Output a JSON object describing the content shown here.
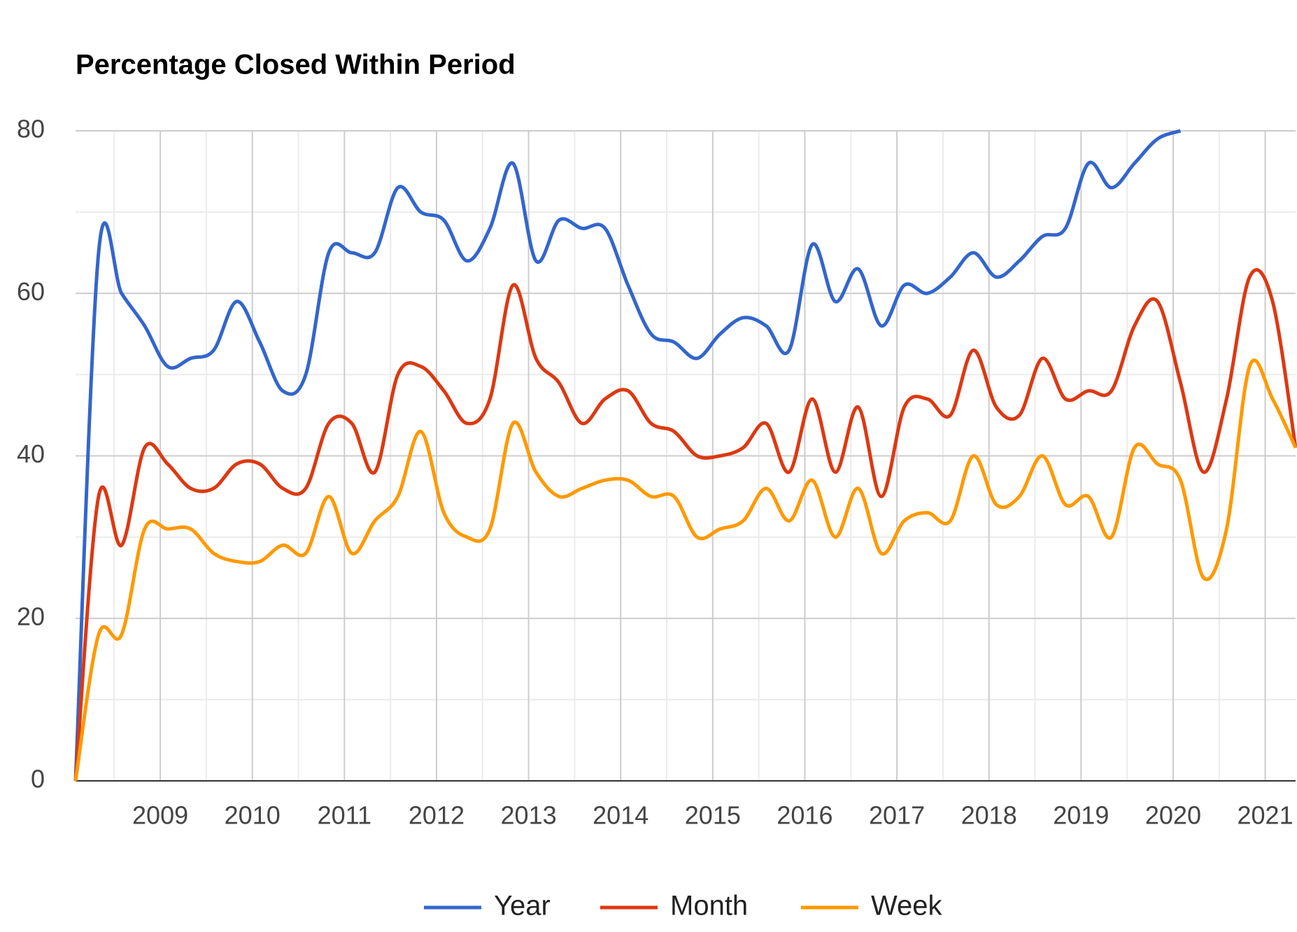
{
  "chart_data": {
    "type": "line",
    "title": "Percentage Closed Within Period",
    "x": [
      2008.08,
      2008.33,
      2008.58,
      2008.83,
      2009.08,
      2009.33,
      2009.58,
      2009.83,
      2010.08,
      2010.33,
      2010.58,
      2010.83,
      2011.08,
      2011.33,
      2011.58,
      2011.83,
      2012.08,
      2012.33,
      2012.58,
      2012.83,
      2013.08,
      2013.33,
      2013.58,
      2013.83,
      2014.08,
      2014.33,
      2014.58,
      2014.83,
      2015.08,
      2015.33,
      2015.58,
      2015.83,
      2016.08,
      2016.33,
      2016.58,
      2016.83,
      2017.08,
      2017.33,
      2017.58,
      2017.83,
      2018.08,
      2018.33,
      2018.58,
      2018.83,
      2019.08,
      2019.33,
      2019.58,
      2019.83,
      2020.08,
      2020.33,
      2020.58,
      2020.83,
      2021.08,
      2021.33
    ],
    "series": [
      {
        "name": "Year",
        "color": "#3366cc",
        "values": [
          0,
          65,
          60,
          56,
          51,
          52,
          53,
          59,
          54,
          48,
          50,
          65,
          65,
          65,
          73,
          70,
          69,
          64,
          68,
          76,
          64,
          69,
          68,
          68,
          61,
          55,
          54,
          52,
          55,
          57,
          56,
          53,
          66,
          59,
          63,
          56,
          61,
          60,
          62,
          65,
          62,
          64,
          67,
          68,
          76,
          73,
          76,
          79,
          80,
          null,
          null,
          null,
          null,
          null
        ]
      },
      {
        "name": "Month",
        "color": "#dc3912",
        "values": [
          0,
          35,
          29,
          41,
          39,
          36,
          36,
          39,
          39,
          36,
          36,
          44,
          44,
          38,
          50,
          51,
          48,
          44,
          47,
          61,
          52,
          49,
          44,
          47,
          48,
          44,
          43,
          40,
          40,
          41,
          44,
          38,
          47,
          38,
          46,
          35,
          46,
          47,
          45,
          53,
          46,
          45,
          52,
          47,
          48,
          48,
          56,
          59,
          49,
          38,
          47,
          62,
          59,
          41
        ]
      },
      {
        "name": "Week",
        "color": "#ff9900",
        "values": [
          0,
          18,
          18,
          31,
          31,
          31,
          28,
          27,
          27,
          29,
          28,
          35,
          28,
          32,
          35,
          43,
          33,
          30,
          31,
          44,
          38,
          35,
          36,
          37,
          37,
          35,
          35,
          30,
          31,
          32,
          36,
          32,
          37,
          30,
          36,
          28,
          32,
          33,
          32,
          40,
          34,
          35,
          40,
          34,
          35,
          30,
          41,
          39,
          37,
          25,
          31,
          51,
          47,
          41
        ]
      }
    ],
    "xlim": [
      2008.08,
      2021.33
    ],
    "xticks": [
      2009,
      2010,
      2011,
      2012,
      2013,
      2014,
      2015,
      2016,
      2017,
      2018,
      2019,
      2020,
      2021
    ],
    "xminor": [
      2008.5,
      2009.5,
      2010.5,
      2011.5,
      2012.5,
      2013.5,
      2014.5,
      2015.5,
      2016.5,
      2017.5,
      2018.5,
      2019.5,
      2020.5
    ],
    "ylim": [
      0,
      80
    ],
    "yticks": [
      0,
      20,
      40,
      60,
      80
    ],
    "yminor": [
      10,
      30,
      50,
      70
    ],
    "grid": true,
    "legend": "bottom"
  }
}
